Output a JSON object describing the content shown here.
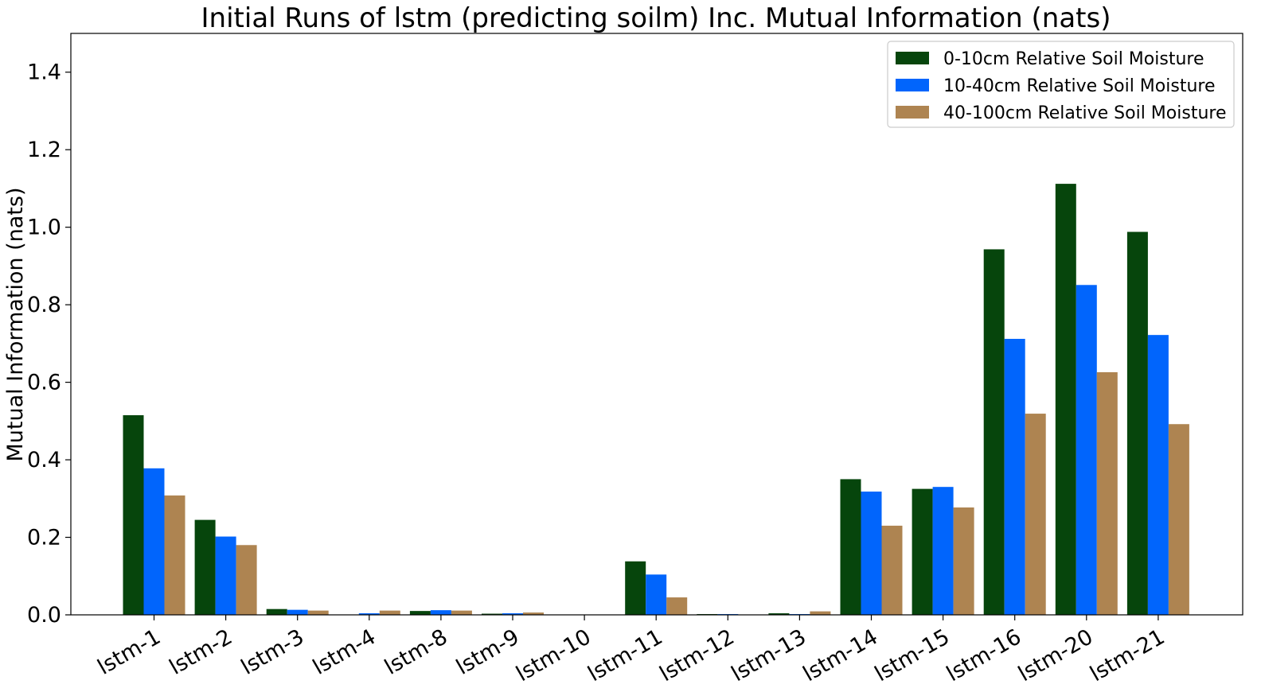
{
  "chart_data": {
    "type": "bar",
    "title": "Initial Runs of lstm (predicting soilm) Inc. Mutual Information (nats)",
    "xlabel": "",
    "ylabel": "Mutual Information (nats)",
    "ylim": [
      0,
      1.5
    ],
    "yticks": [
      0.0,
      0.2,
      0.4,
      0.6,
      0.8,
      1.0,
      1.2,
      1.4
    ],
    "ytick_labels": [
      "0.0",
      "0.2",
      "0.4",
      "0.6",
      "0.8",
      "1.0",
      "1.2",
      "1.4"
    ],
    "grid": false,
    "legend_position": "top-right",
    "categories": [
      "lstm-1",
      "lstm-2",
      "lstm-3",
      "lstm-4",
      "lstm-8",
      "lstm-9",
      "lstm-10",
      "lstm-11",
      "lstm-12",
      "lstm-13",
      "lstm-14",
      "lstm-15",
      "lstm-16",
      "lstm-20",
      "lstm-21"
    ],
    "series": [
      {
        "name": "0-10cm Relative Soil Moisture",
        "color": "#06450c",
        "values": [
          0.515,
          0.245,
          0.015,
          0.0,
          0.01,
          0.003,
          0.0,
          0.138,
          0.002,
          0.004,
          0.35,
          0.325,
          0.943,
          1.112,
          0.988
        ]
      },
      {
        "name": "10-40cm Relative Soil Moisture",
        "color": "#0165fc",
        "values": [
          0.378,
          0.202,
          0.013,
          0.004,
          0.012,
          0.004,
          0.0,
          0.104,
          0.002,
          0.002,
          0.318,
          0.33,
          0.712,
          0.851,
          0.722
        ]
      },
      {
        "name": "40-100cm Relative Soil Moisture",
        "color": "#ae8451",
        "values": [
          0.308,
          0.18,
          0.011,
          0.011,
          0.011,
          0.006,
          0.0,
          0.045,
          0.0,
          0.009,
          0.23,
          0.277,
          0.519,
          0.626,
          0.492
        ]
      }
    ]
  }
}
